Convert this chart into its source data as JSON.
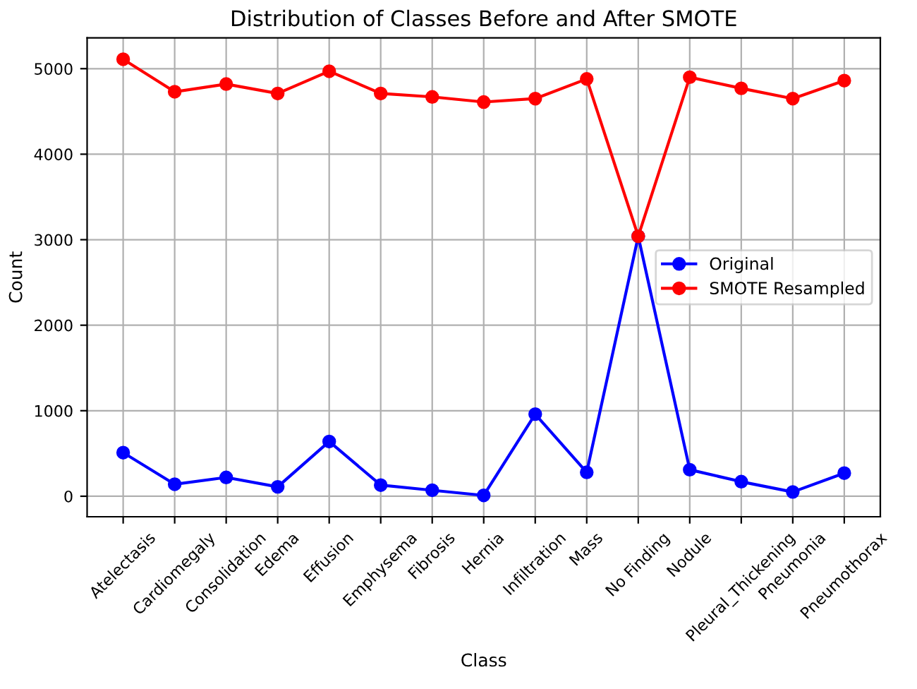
{
  "chart_data": {
    "type": "line",
    "title": "Distribution of Classes Before and After SMOTE",
    "xlabel": "Class",
    "ylabel": "Count",
    "categories": [
      "Atelectasis",
      "Cardiomegaly",
      "Consolidation",
      "Edema",
      "Effusion",
      "Emphysema",
      "Fibrosis",
      "Hernia",
      "Infiltration",
      "Mass",
      "No Finding",
      "Nodule",
      "Pleural_Thickening",
      "Pneumonia",
      "Pneumothorax"
    ],
    "series": [
      {
        "name": "Original",
        "color": "#0000ff",
        "values": [
          510,
          140,
          220,
          110,
          640,
          130,
          70,
          10,
          960,
          280,
          3040,
          310,
          170,
          50,
          270
        ]
      },
      {
        "name": "SMOTE Resampled",
        "color": "#ff0000",
        "values": [
          5110,
          4730,
          4820,
          4710,
          4970,
          4710,
          4670,
          4610,
          4650,
          4880,
          3040,
          4900,
          4770,
          4650,
          4860
        ]
      }
    ],
    "ylim": [
      -240,
      5360
    ],
    "yticks": [
      0,
      1000,
      2000,
      3000,
      4000,
      5000
    ],
    "grid": true,
    "legend": "right",
    "marker": "circle",
    "line_style": "solid"
  }
}
